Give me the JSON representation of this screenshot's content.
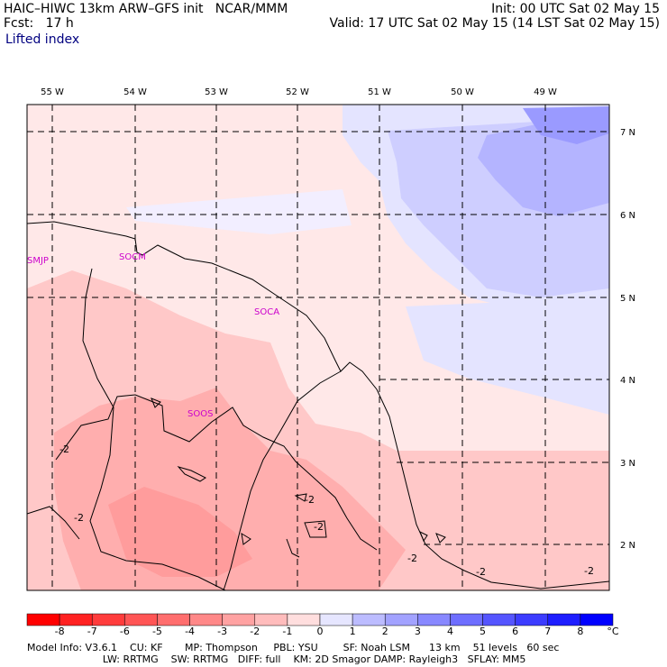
{
  "header": {
    "line1_left": "HAIC–HIWC 13km ARW–GFS init   NCAR/MMM",
    "line2_left": "Fcst:   17 h",
    "line1_right": "Init: 00 UTC Sat 02 May 15",
    "line2_right": "Valid: 17 UTC Sat 02 May 15 (14 LST Sat 02 May 15)",
    "field_name": "Lifted index"
  },
  "map": {
    "lon_labels": [
      "55 W",
      "54 W",
      "53 W",
      "52 W",
      "51 W",
      "50 W",
      "49 W"
    ],
    "lat_labels": [
      "7 N",
      "6 N",
      "5 N",
      "4 N",
      "3 N",
      "2 N"
    ],
    "stations": [
      "SMJP",
      "SOCM",
      "SOCA",
      "SOOS"
    ],
    "contour_labels": [
      "-2",
      "-2",
      "-2",
      "-2",
      "-2",
      "-2",
      "-2"
    ],
    "colors": {
      "border": "#000000",
      "station": "#cc00cc"
    }
  },
  "colorbar": {
    "ticks": [
      "-8",
      "-7",
      "-6",
      "-5",
      "-4",
      "-3",
      "-2",
      "-1",
      "0",
      "1",
      "2",
      "3",
      "4",
      "5",
      "6",
      "7",
      "8"
    ],
    "unit": "°C",
    "colors": [
      "#ff0000",
      "#ff2222",
      "#ff3c3c",
      "#ff5555",
      "#ff6e6e",
      "#ff8888",
      "#ffa2a2",
      "#ffbcbc",
      "#ffdede",
      "#e6e6ff",
      "#bcbcff",
      "#a2a2ff",
      "#8888ff",
      "#6e6eff",
      "#5555ff",
      "#3c3cff",
      "#1e1eff",
      "#0000ff"
    ]
  },
  "footer": {
    "line1": "Model Info: V3.6.1    CU: KF       MP: Thompson     PBL: YSU        SF: Noah LSM      13 km    51 levels   60 sec",
    "line2": "                        LW: RRTMG    SW: RRTMG   DIFF: full    KM: 2D Smagor DAMP: Rayleigh3   SFLAY: MM5"
  }
}
